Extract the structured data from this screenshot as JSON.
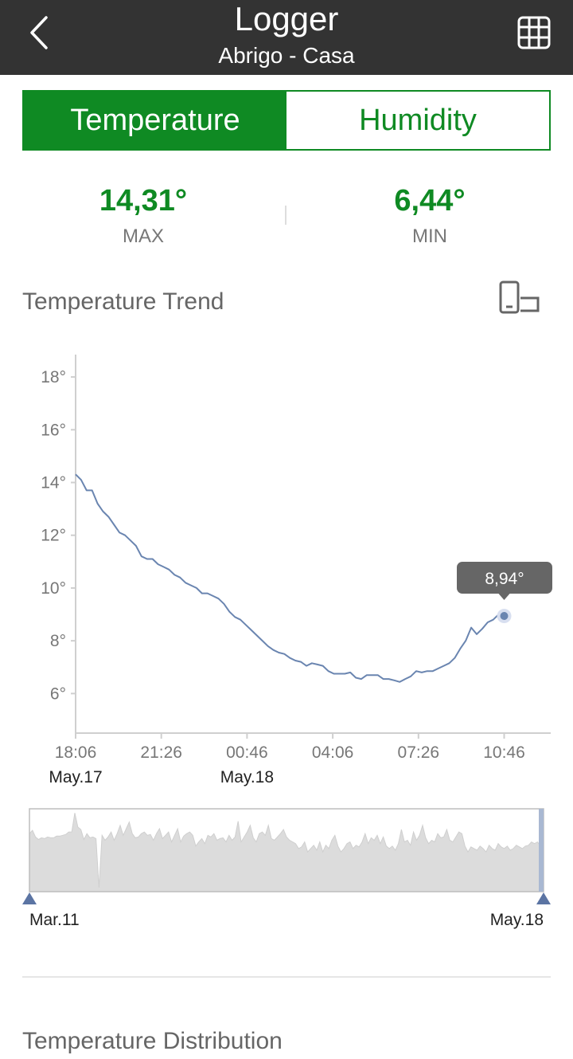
{
  "header": {
    "title": "Logger",
    "subtitle": "Abrigo - Casa",
    "back_icon": "chevron-left-icon",
    "table_icon": "grid-table-icon"
  },
  "tabs": [
    {
      "label": "Temperature",
      "active": true
    },
    {
      "label": "Humidity",
      "active": false
    }
  ],
  "stats": {
    "max": {
      "value": "14,31°",
      "label": "MAX"
    },
    "min": {
      "value": "6,44°",
      "label": "MIN"
    }
  },
  "trend": {
    "title": "Temperature Trend",
    "rotate_icon": "rotate-screen-icon"
  },
  "colors": {
    "accent": "#0f8a23",
    "header_bg": "#333333",
    "line": "#6a85b0",
    "tooltip_bg": "#666666",
    "range_fill": "#dcdcdc"
  },
  "chart_data": {
    "type": "line",
    "ylim": [
      4.5,
      19
    ],
    "y_ticks": [
      "18°",
      "16°",
      "14°",
      "12°",
      "10°",
      "8°",
      "6°"
    ],
    "y_tick_values": [
      18,
      16,
      14,
      12,
      10,
      8,
      6
    ],
    "x_ticks": [
      "18:06",
      "21:26",
      "00:46",
      "04:06",
      "07:26",
      "10:46"
    ],
    "date_labels": [
      {
        "label": "May.17",
        "tick": 0
      },
      {
        "label": "May.18",
        "tick": 2
      }
    ],
    "tooltip": {
      "value": "8,94°"
    },
    "series": [
      {
        "values": [
          14.31,
          14.1,
          13.7,
          13.7,
          13.2,
          12.9,
          12.7,
          12.4,
          12.1,
          12.0,
          11.8,
          11.6,
          11.2,
          11.1,
          11.1,
          10.9,
          10.8,
          10.7,
          10.5,
          10.4,
          10.2,
          10.1,
          10.0,
          9.8,
          9.8,
          9.7,
          9.6,
          9.4,
          9.1,
          8.9,
          8.8,
          8.6,
          8.4,
          8.2,
          8.0,
          7.8,
          7.65,
          7.55,
          7.5,
          7.35,
          7.25,
          7.2,
          7.05,
          7.15,
          7.1,
          7.05,
          6.85,
          6.75,
          6.75,
          6.75,
          6.8,
          6.6,
          6.55,
          6.7,
          6.7,
          6.7,
          6.55,
          6.55,
          6.5,
          6.44,
          6.55,
          6.65,
          6.85,
          6.8,
          6.85,
          6.85,
          6.95,
          7.05,
          7.15,
          7.35,
          7.7,
          8.0,
          8.5,
          8.25,
          8.45,
          8.7,
          8.8,
          9.0,
          8.94
        ]
      }
    ],
    "overview": {
      "start_label": "Mar.11",
      "end_label": "May.18",
      "values": [
        0.7,
        0.74,
        0.66,
        0.63,
        0.65,
        0.64,
        0.66,
        0.65,
        0.65,
        0.67,
        0.67,
        0.68,
        0.69,
        0.72,
        0.72,
        0.95,
        0.78,
        0.75,
        0.63,
        0.7,
        0.65,
        0.66,
        0.64,
        0.05,
        0.68,
        0.62,
        0.66,
        0.72,
        0.62,
        0.7,
        0.8,
        0.68,
        0.76,
        0.84,
        0.7,
        0.65,
        0.66,
        0.7,
        0.72,
        0.68,
        0.69,
        0.62,
        0.7,
        0.76,
        0.64,
        0.68,
        0.72,
        0.6,
        0.68,
        0.76,
        0.6,
        0.67,
        0.7,
        0.72,
        0.68,
        0.55,
        0.6,
        0.64,
        0.58,
        0.68,
        0.66,
        0.7,
        0.62,
        0.64,
        0.65,
        0.6,
        0.68,
        0.62,
        0.66,
        0.85,
        0.6,
        0.66,
        0.72,
        0.8,
        0.65,
        0.6,
        0.7,
        0.72,
        0.68,
        0.8,
        0.64,
        0.62,
        0.66,
        0.7,
        0.75,
        0.66,
        0.62,
        0.6,
        0.58,
        0.52,
        0.54,
        0.6,
        0.48,
        0.52,
        0.56,
        0.5,
        0.6,
        0.48,
        0.56,
        0.52,
        0.62,
        0.68,
        0.55,
        0.48,
        0.52,
        0.58,
        0.6,
        0.52,
        0.56,
        0.54,
        0.6,
        0.7,
        0.58,
        0.65,
        0.62,
        0.68,
        0.58,
        0.66,
        0.55,
        0.52,
        0.55,
        0.5,
        0.58,
        0.75,
        0.6,
        0.62,
        0.56,
        0.72,
        0.62,
        0.68,
        0.8,
        0.65,
        0.58,
        0.62,
        0.6,
        0.7,
        0.65,
        0.66,
        0.75,
        0.62,
        0.6,
        0.66,
        0.72,
        0.7,
        0.55,
        0.48,
        0.54,
        0.52,
        0.5,
        0.55,
        0.52,
        0.48,
        0.56,
        0.52,
        0.5,
        0.58,
        0.54,
        0.52,
        0.55,
        0.5,
        0.52,
        0.56,
        0.54,
        0.52,
        0.55,
        0.56,
        0.6,
        0.58,
        0.6,
        0.55,
        0.42
      ]
    }
  },
  "distribution": {
    "title": "Temperature Distribution"
  }
}
